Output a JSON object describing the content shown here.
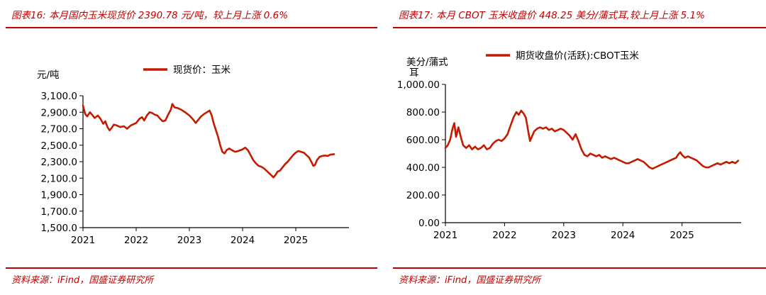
{
  "colors": {
    "accent": "#c00000",
    "line": "#c41a00",
    "axis": "#000000"
  },
  "left": {
    "title": "图表16:  本月国内玉米现货价 2390.78 元/吨，较上月上涨 0.6%",
    "source": "资料来源：iFind，国盛证券研究所"
  },
  "right": {
    "title": "图表17:  本月 CBOT 玉米收盘价 448.25 美分/蒲式耳,较上月上涨 5.1%",
    "source": "资料来源：iFind，国盛证券研究所"
  },
  "chart_data": [
    {
      "type": "line",
      "unit_label": "元/吨",
      "legend": "现货价：玉米",
      "legend_position": "top-center",
      "x_ticks": [
        "2021",
        "2022",
        "2023",
        "2024",
        "2025"
      ],
      "y_ticks": [
        "3,100.0",
        "2,900.0",
        "2,700.0",
        "2,500.0",
        "2,300.0",
        "2,100.0",
        "1,900.0",
        "1,700.0",
        "1,500.0"
      ],
      "ylim": [
        1500,
        3100
      ],
      "xlim": [
        2021.0,
        2026.0
      ],
      "series": [
        {
          "name": "现货价：玉米",
          "points": [
            [
              2021.0,
              2980
            ],
            [
              2021.04,
              2880
            ],
            [
              2021.08,
              2850
            ],
            [
              2021.13,
              2900
            ],
            [
              2021.17,
              2870
            ],
            [
              2021.22,
              2830
            ],
            [
              2021.28,
              2860
            ],
            [
              2021.33,
              2820
            ],
            [
              2021.38,
              2760
            ],
            [
              2021.42,
              2790
            ],
            [
              2021.46,
              2720
            ],
            [
              2021.5,
              2680
            ],
            [
              2021.54,
              2710
            ],
            [
              2021.58,
              2750
            ],
            [
              2021.63,
              2740
            ],
            [
              2021.7,
              2720
            ],
            [
              2021.77,
              2730
            ],
            [
              2021.83,
              2700
            ],
            [
              2021.9,
              2740
            ],
            [
              2022.0,
              2770
            ],
            [
              2022.06,
              2820
            ],
            [
              2022.11,
              2840
            ],
            [
              2022.15,
              2800
            ],
            [
              2022.2,
              2860
            ],
            [
              2022.25,
              2900
            ],
            [
              2022.3,
              2890
            ],
            [
              2022.35,
              2870
            ],
            [
              2022.4,
              2860
            ],
            [
              2022.45,
              2820
            ],
            [
              2022.5,
              2790
            ],
            [
              2022.55,
              2800
            ],
            [
              2022.6,
              2870
            ],
            [
              2022.65,
              2930
            ],
            [
              2022.68,
              3000
            ],
            [
              2022.72,
              2960
            ],
            [
              2022.78,
              2950
            ],
            [
              2022.85,
              2930
            ],
            [
              2022.92,
              2900
            ],
            [
              2023.0,
              2860
            ],
            [
              2023.06,
              2820
            ],
            [
              2023.12,
              2770
            ],
            [
              2023.17,
              2810
            ],
            [
              2023.22,
              2850
            ],
            [
              2023.28,
              2880
            ],
            [
              2023.33,
              2900
            ],
            [
              2023.38,
              2920
            ],
            [
              2023.42,
              2860
            ],
            [
              2023.46,
              2760
            ],
            [
              2023.5,
              2680
            ],
            [
              2023.54,
              2600
            ],
            [
              2023.58,
              2500
            ],
            [
              2023.62,
              2420
            ],
            [
              2023.66,
              2400
            ],
            [
              2023.7,
              2440
            ],
            [
              2023.75,
              2460
            ],
            [
              2023.8,
              2440
            ],
            [
              2023.86,
              2420
            ],
            [
              2023.92,
              2430
            ],
            [
              2024.0,
              2450
            ],
            [
              2024.05,
              2470
            ],
            [
              2024.1,
              2440
            ],
            [
              2024.15,
              2380
            ],
            [
              2024.2,
              2320
            ],
            [
              2024.25,
              2280
            ],
            [
              2024.3,
              2250
            ],
            [
              2024.35,
              2240
            ],
            [
              2024.4,
              2220
            ],
            [
              2024.45,
              2190
            ],
            [
              2024.5,
              2160
            ],
            [
              2024.55,
              2130
            ],
            [
              2024.58,
              2110
            ],
            [
              2024.62,
              2140
            ],
            [
              2024.66,
              2180
            ],
            [
              2024.7,
              2190
            ],
            [
              2024.75,
              2230
            ],
            [
              2024.8,
              2270
            ],
            [
              2024.85,
              2300
            ],
            [
              2024.9,
              2340
            ],
            [
              2024.95,
              2380
            ],
            [
              2025.0,
              2410
            ],
            [
              2025.05,
              2430
            ],
            [
              2025.1,
              2420
            ],
            [
              2025.15,
              2410
            ],
            [
              2025.2,
              2380
            ],
            [
              2025.25,
              2350
            ],
            [
              2025.3,
              2290
            ],
            [
              2025.33,
              2250
            ],
            [
              2025.36,
              2260
            ],
            [
              2025.4,
              2320
            ],
            [
              2025.45,
              2360
            ],
            [
              2025.5,
              2370
            ],
            [
              2025.55,
              2375
            ],
            [
              2025.6,
              2370
            ],
            [
              2025.65,
              2385
            ],
            [
              2025.72,
              2391
            ]
          ]
        }
      ]
    },
    {
      "type": "line",
      "unit_label": "美分/蒲式耳",
      "legend": "期货收盘价(活跃):CBOT玉米",
      "legend_position": "top-center",
      "x_ticks": [
        "2021",
        "2022",
        "2023",
        "2024",
        "2025"
      ],
      "y_ticks": [
        "1,000.00",
        "800.00",
        "600.00",
        "400.00",
        "200.00",
        "0.00"
      ],
      "ylim": [
        0,
        1000
      ],
      "xlim": [
        2021.0,
        2026.0
      ],
      "series": [
        {
          "name": "期货收盘价(活跃):CBOT玉米",
          "points": [
            [
              2021.0,
              540
            ],
            [
              2021.04,
              560
            ],
            [
              2021.08,
              600
            ],
            [
              2021.12,
              680
            ],
            [
              2021.15,
              720
            ],
            [
              2021.18,
              620
            ],
            [
              2021.22,
              690
            ],
            [
              2021.26,
              620
            ],
            [
              2021.3,
              560
            ],
            [
              2021.35,
              540
            ],
            [
              2021.4,
              560
            ],
            [
              2021.45,
              530
            ],
            [
              2021.5,
              550
            ],
            [
              2021.55,
              530
            ],
            [
              2021.6,
              540
            ],
            [
              2021.65,
              560
            ],
            [
              2021.7,
              530
            ],
            [
              2021.75,
              540
            ],
            [
              2021.8,
              570
            ],
            [
              2021.85,
              590
            ],
            [
              2021.9,
              600
            ],
            [
              2021.95,
              590
            ],
            [
              2022.0,
              610
            ],
            [
              2022.05,
              640
            ],
            [
              2022.1,
              700
            ],
            [
              2022.15,
              760
            ],
            [
              2022.2,
              800
            ],
            [
              2022.24,
              780
            ],
            [
              2022.28,
              810
            ],
            [
              2022.32,
              790
            ],
            [
              2022.36,
              760
            ],
            [
              2022.4,
              660
            ],
            [
              2022.43,
              590
            ],
            [
              2022.46,
              620
            ],
            [
              2022.5,
              660
            ],
            [
              2022.55,
              680
            ],
            [
              2022.6,
              690
            ],
            [
              2022.65,
              680
            ],
            [
              2022.7,
              690
            ],
            [
              2022.75,
              670
            ],
            [
              2022.8,
              680
            ],
            [
              2022.85,
              660
            ],
            [
              2022.9,
              670
            ],
            [
              2022.95,
              680
            ],
            [
              2023.0,
              670
            ],
            [
              2023.05,
              650
            ],
            [
              2023.1,
              630
            ],
            [
              2023.15,
              600
            ],
            [
              2023.2,
              640
            ],
            [
              2023.25,
              590
            ],
            [
              2023.3,
              530
            ],
            [
              2023.35,
              490
            ],
            [
              2023.4,
              480
            ],
            [
              2023.45,
              500
            ],
            [
              2023.5,
              490
            ],
            [
              2023.55,
              480
            ],
            [
              2023.6,
              490
            ],
            [
              2023.65,
              470
            ],
            [
              2023.7,
              480
            ],
            [
              2023.75,
              470
            ],
            [
              2023.8,
              460
            ],
            [
              2023.85,
              470
            ],
            [
              2023.9,
              460
            ],
            [
              2023.95,
              450
            ],
            [
              2024.0,
              440
            ],
            [
              2024.05,
              430
            ],
            [
              2024.1,
              430
            ],
            [
              2024.15,
              440
            ],
            [
              2024.2,
              450
            ],
            [
              2024.25,
              460
            ],
            [
              2024.3,
              450
            ],
            [
              2024.35,
              440
            ],
            [
              2024.4,
              420
            ],
            [
              2024.45,
              400
            ],
            [
              2024.5,
              390
            ],
            [
              2024.55,
              400
            ],
            [
              2024.6,
              410
            ],
            [
              2024.65,
              420
            ],
            [
              2024.7,
              430
            ],
            [
              2024.75,
              440
            ],
            [
              2024.8,
              450
            ],
            [
              2024.85,
              460
            ],
            [
              2024.9,
              470
            ],
            [
              2024.93,
              490
            ],
            [
              2024.97,
              510
            ],
            [
              2025.0,
              490
            ],
            [
              2025.05,
              470
            ],
            [
              2025.1,
              480
            ],
            [
              2025.15,
              470
            ],
            [
              2025.2,
              460
            ],
            [
              2025.25,
              450
            ],
            [
              2025.3,
              430
            ],
            [
              2025.35,
              410
            ],
            [
              2025.4,
              400
            ],
            [
              2025.45,
              400
            ],
            [
              2025.5,
              410
            ],
            [
              2025.55,
              420
            ],
            [
              2025.6,
              430
            ],
            [
              2025.65,
              420
            ],
            [
              2025.7,
              430
            ],
            [
              2025.75,
              440
            ],
            [
              2025.8,
              430
            ],
            [
              2025.85,
              440
            ],
            [
              2025.9,
              430
            ],
            [
              2025.95,
              448
            ]
          ]
        }
      ]
    }
  ]
}
